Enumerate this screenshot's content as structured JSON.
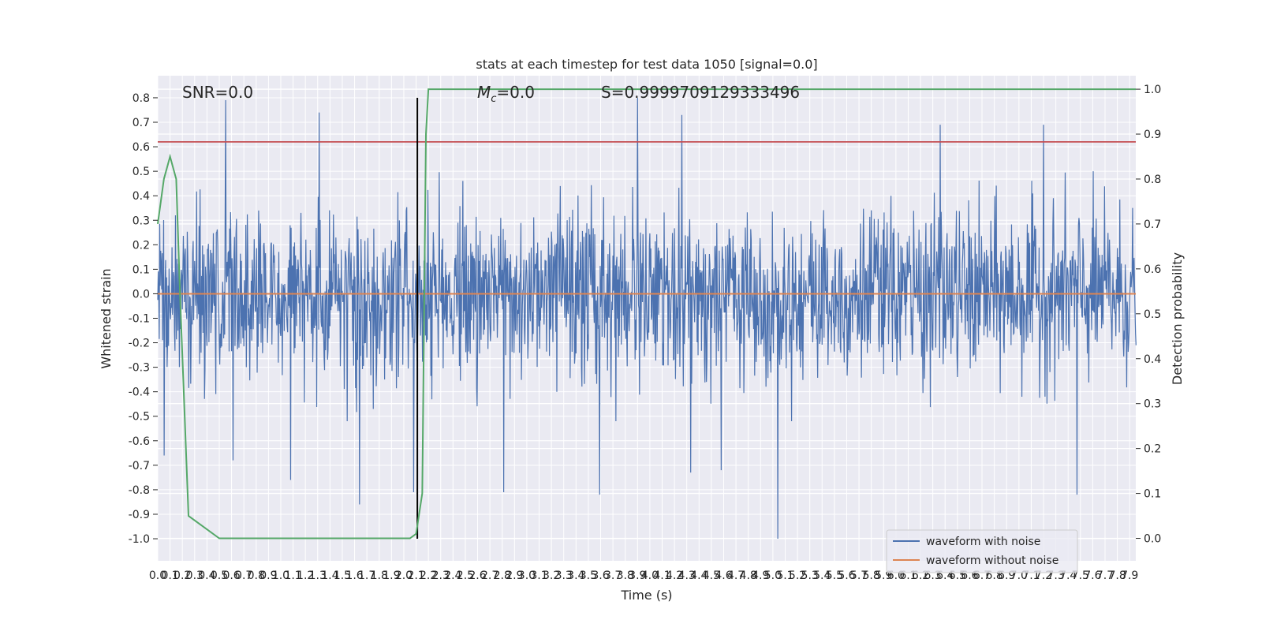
{
  "chart_data": {
    "type": "line",
    "title": "stats at each timestep for test data 1050 [signal=0.0]",
    "xlabel": "Time (s)",
    "ylabel": "Whitened strain",
    "ylabel_right": "Detection probability",
    "annotations": {
      "snr": "SNR=0.0",
      "mc_symbol": "M",
      "mc_sub": "c",
      "mc_value": "=0.0",
      "s": "S=0.9999709129333496"
    },
    "xlim": [
      0.0,
      7.95
    ],
    "ylim": [
      -1.09,
      0.89
    ],
    "ylim_right": [
      -0.05,
      1.03
    ],
    "x_ticks": [
      0.0,
      0.1,
      0.2,
      0.3,
      0.4,
      0.5,
      0.6,
      0.7,
      0.8,
      0.9,
      1.0,
      1.1,
      1.2,
      1.3,
      1.4,
      1.5,
      1.6,
      1.7,
      1.8,
      1.9,
      2.0,
      2.1,
      2.2,
      2.3,
      2.4,
      2.5,
      2.6,
      2.7,
      2.8,
      2.9,
      3.0,
      3.1,
      3.2,
      3.3,
      3.4,
      3.5,
      3.6,
      3.7,
      3.8,
      3.9,
      4.0,
      4.1,
      4.2,
      4.3,
      4.4,
      4.5,
      4.6,
      4.7,
      4.8,
      4.9,
      5.0,
      5.1,
      5.2,
      5.3,
      5.4,
      5.5,
      5.6,
      5.7,
      5.8,
      5.9,
      6.0,
      6.1,
      6.2,
      6.3,
      6.4,
      6.5,
      6.6,
      6.7,
      6.8,
      6.9,
      7.0,
      7.1,
      7.2,
      7.3,
      7.4,
      7.5,
      7.6,
      7.7,
      7.8,
      7.9
    ],
    "y_ticks": [
      0.8,
      0.7,
      0.6,
      0.5,
      0.4,
      0.3,
      0.2,
      0.1,
      0.0,
      -0.1,
      -0.2,
      -0.3,
      -0.4,
      -0.5,
      -0.6,
      -0.7,
      -0.8,
      -0.9,
      -1.0
    ],
    "y_ticks_right": [
      1.0,
      0.9,
      0.8,
      0.7,
      0.6,
      0.5,
      0.4,
      0.3,
      0.2,
      0.1,
      0.0
    ],
    "series": [
      {
        "name": "waveform with noise",
        "color": "#4c72b0",
        "sample_rate": 250,
        "envelope": {
          "typical_upper": 0.38,
          "typical_lower": -0.4,
          "range": [
            -1.0,
            0.8
          ]
        },
        "peaks": [
          {
            "x": 0.05,
            "y": -0.66
          },
          {
            "x": 0.55,
            "y": 0.79
          },
          {
            "x": 0.61,
            "y": -0.68
          },
          {
            "x": 1.08,
            "y": -0.76
          },
          {
            "x": 1.31,
            "y": 0.74
          },
          {
            "x": 1.64,
            "y": -0.86
          },
          {
            "x": 2.08,
            "y": -0.81
          },
          {
            "x": 2.81,
            "y": -0.81
          },
          {
            "x": 3.59,
            "y": -0.82
          },
          {
            "x": 3.9,
            "y": 0.8
          },
          {
            "x": 4.26,
            "y": 0.73
          },
          {
            "x": 4.33,
            "y": -0.73
          },
          {
            "x": 4.58,
            "y": -0.72
          },
          {
            "x": 5.04,
            "y": -1.0
          },
          {
            "x": 7.47,
            "y": -0.82
          },
          {
            "x": 7.2,
            "y": 0.69
          },
          {
            "x": 6.36,
            "y": 0.69
          }
        ]
      },
      {
        "name": "waveform without noise",
        "color": "#dd8452",
        "constant": 0.0
      },
      {
        "name": "",
        "color": "#55a868",
        "axis": "right",
        "x": [
          0.0,
          0.05,
          0.1,
          0.15,
          0.18,
          0.25,
          0.5,
          1.0,
          1.5,
          2.0,
          2.05,
          2.1,
          2.15,
          2.18,
          2.2,
          7.95
        ],
        "y": [
          0.7,
          0.8,
          0.85,
          0.8,
          0.55,
          0.05,
          0.0,
          0.0,
          0.0,
          0.0,
          0.0,
          0.01,
          0.1,
          0.9,
          1.0,
          1.0
        ]
      }
    ],
    "hlines": [
      {
        "y": 0.62,
        "color": "#c44e52"
      }
    ],
    "vlines": [
      {
        "x": 2.11,
        "color": "#000000",
        "y_range": [
          -1.0,
          0.8
        ]
      }
    ],
    "legend": {
      "placement": "lower-right",
      "entries": [
        "waveform with noise",
        "waveform without noise"
      ]
    },
    "grid": true,
    "style": {
      "background": "#eaeaf2",
      "grid_color": "#ffffff"
    }
  }
}
